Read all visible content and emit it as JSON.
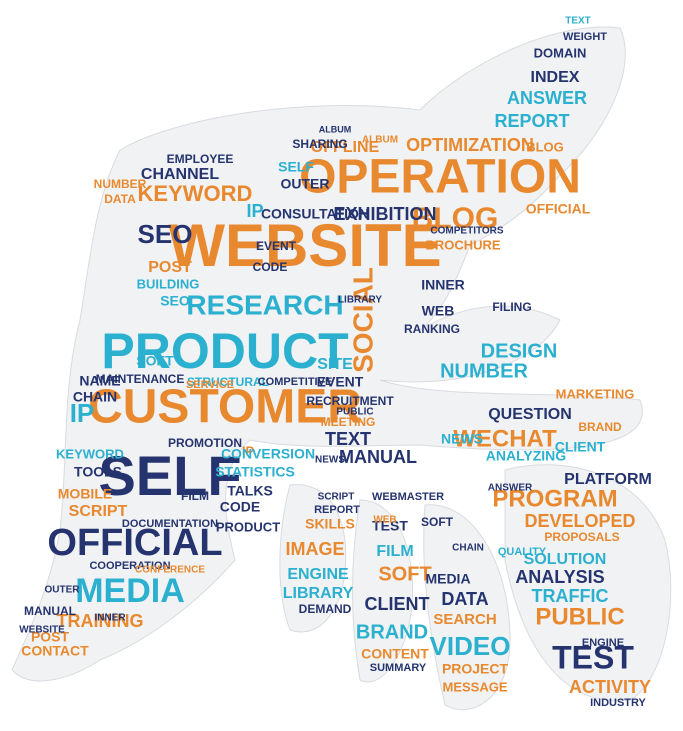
{
  "palette": {
    "orange": "#e8892f",
    "navy": "#25346e",
    "cyan": "#2bb0cf",
    "shape_fill": "#f1f2f4",
    "shape_stroke": "#d9dbe0"
  },
  "words": [
    {
      "text": "WEBSITE",
      "color": "orange"
    },
    {
      "text": "OPERATION",
      "color": "orange"
    },
    {
      "text": "PRODUCT",
      "color": "cyan"
    },
    {
      "text": "CUSTOMER",
      "color": "orange"
    },
    {
      "text": "SELF",
      "color": "navy"
    },
    {
      "text": "OFFICIAL",
      "color": "navy"
    },
    {
      "text": "MEDIA",
      "color": "cyan"
    },
    {
      "text": "RESEARCH",
      "color": "cyan"
    },
    {
      "text": "SOCIAL",
      "color": "orange"
    },
    {
      "text": "BLOG",
      "color": "orange"
    },
    {
      "text": "KEYWORD",
      "color": "orange"
    },
    {
      "text": "CHANNEL",
      "color": "navy"
    },
    {
      "text": "SEO",
      "color": "navy"
    },
    {
      "text": "IP",
      "color": "cyan"
    },
    {
      "text": "IP",
      "color": "cyan"
    },
    {
      "text": "OPTIMIZATION",
      "color": "orange"
    },
    {
      "text": "OFFLINE",
      "color": "orange"
    },
    {
      "text": "REPORT",
      "color": "cyan"
    },
    {
      "text": "ANSWER",
      "color": "cyan"
    },
    {
      "text": "INDEX",
      "color": "navy"
    },
    {
      "text": "DOMAIN",
      "color": "navy"
    },
    {
      "text": "WEIGHT",
      "color": "navy"
    },
    {
      "text": "TEXT",
      "color": "cyan"
    },
    {
      "text": "EXHIBITION",
      "color": "navy"
    },
    {
      "text": "CONSULTATION",
      "color": "navy"
    },
    {
      "text": "ALBUM",
      "color": "navy"
    },
    {
      "text": "OUTER",
      "color": "navy"
    },
    {
      "text": "SELF",
      "color": "cyan"
    },
    {
      "text": "SHARING",
      "color": "navy"
    },
    {
      "text": "EMPLOYEE",
      "color": "navy"
    },
    {
      "text": "NUMBER",
      "color": "orange"
    },
    {
      "text": "DATA",
      "color": "orange"
    },
    {
      "text": "POST",
      "color": "orange"
    },
    {
      "text": "BUILDING",
      "color": "cyan"
    },
    {
      "text": "SEO",
      "color": "cyan"
    },
    {
      "text": "EVENT",
      "color": "navy"
    },
    {
      "text": "CODE",
      "color": "navy"
    },
    {
      "text": "WEB",
      "color": "navy"
    },
    {
      "text": "RANKING",
      "color": "navy"
    },
    {
      "text": "DESIGN",
      "color": "cyan"
    },
    {
      "text": "NUMBER",
      "color": "cyan"
    },
    {
      "text": "FILING",
      "color": "navy"
    },
    {
      "text": "INNER",
      "color": "navy"
    },
    {
      "text": "BROCHURE",
      "color": "orange"
    },
    {
      "text": "SITE",
      "color": "cyan"
    },
    {
      "text": "EVENT",
      "color": "navy"
    },
    {
      "text": "NAME",
      "color": "navy"
    },
    {
      "text": "CHAIN",
      "color": "navy"
    },
    {
      "text": "SOFT",
      "color": "cyan"
    },
    {
      "text": "MAINTENANCE",
      "color": "navy"
    },
    {
      "text": "STRUCTURAL",
      "color": "cyan"
    },
    {
      "text": "COMPETITIVE",
      "color": "navy"
    },
    {
      "text": "RECRUITMENT",
      "color": "navy"
    },
    {
      "text": "KEYWORD",
      "color": "cyan"
    },
    {
      "text": "TOOLS",
      "color": "navy"
    },
    {
      "text": "TEXT",
      "color": "navy"
    },
    {
      "text": "MANUAL",
      "color": "navy"
    },
    {
      "text": "MEETING",
      "color": "orange"
    },
    {
      "text": "PUBLIC",
      "color": "navy"
    },
    {
      "text": "PROMOTION",
      "color": "navy"
    },
    {
      "text": "IP",
      "color": "orange"
    },
    {
      "text": "CONVERSION",
      "color": "cyan"
    },
    {
      "text": "STATISTICS",
      "color": "cyan"
    },
    {
      "text": "TALKS",
      "color": "navy"
    },
    {
      "text": "CODE",
      "color": "navy"
    },
    {
      "text": "FILM",
      "color": "navy"
    },
    {
      "text": "MOBILE",
      "color": "orange"
    },
    {
      "text": "SCRIPT",
      "color": "orange"
    },
    {
      "text": "SERVICE",
      "color": "orange"
    },
    {
      "text": "PRODUCT",
      "color": "navy"
    },
    {
      "text": "DOCUMENTATION",
      "color": "navy"
    },
    {
      "text": "COOPERATION",
      "color": "navy"
    },
    {
      "text": "CONFERENCE",
      "color": "orange"
    },
    {
      "text": "TRAINING",
      "color": "orange"
    },
    {
      "text": "POST",
      "color": "orange"
    },
    {
      "text": "CONTACT",
      "color": "orange"
    },
    {
      "text": "MANUAL",
      "color": "navy"
    },
    {
      "text": "WEBSITE",
      "color": "navy"
    },
    {
      "text": "INNER",
      "color": "navy"
    },
    {
      "text": "OUTER",
      "color": "navy"
    },
    {
      "text": "WECHAT",
      "color": "orange"
    },
    {
      "text": "NEWS",
      "color": "cyan"
    },
    {
      "text": "QUESTION",
      "color": "navy"
    },
    {
      "text": "ANALYZING",
      "color": "cyan"
    },
    {
      "text": "MARKETING",
      "color": "orange"
    },
    {
      "text": "BRAND",
      "color": "orange"
    },
    {
      "text": "PROGRAM",
      "color": "orange"
    },
    {
      "text": "PLATFORM",
      "color": "navy"
    },
    {
      "text": "DEVELOPED",
      "color": "orange"
    },
    {
      "text": "PROPOSALS",
      "color": "orange"
    },
    {
      "text": "SOLUTION",
      "color": "cyan"
    },
    {
      "text": "QUALITY",
      "color": "cyan"
    },
    {
      "text": "ANALYSIS",
      "color": "navy"
    },
    {
      "text": "TRAFFIC",
      "color": "cyan"
    },
    {
      "text": "PUBLIC",
      "color": "orange"
    },
    {
      "text": "TEST",
      "color": "navy"
    },
    {
      "text": "ACTIVITY",
      "color": "orange"
    },
    {
      "text": "INDUSTRY",
      "color": "navy"
    },
    {
      "text": "ENGINE",
      "color": "navy"
    },
    {
      "text": "SKILLS",
      "color": "orange"
    },
    {
      "text": "IMAGE",
      "color": "orange"
    },
    {
      "text": "ENGINE",
      "color": "cyan"
    },
    {
      "text": "LIBRARY",
      "color": "cyan"
    },
    {
      "text": "DEMAND",
      "color": "navy"
    },
    {
      "text": "REPORT",
      "color": "navy"
    },
    {
      "text": "SCRIPT",
      "color": "navy"
    },
    {
      "text": "TEST",
      "color": "navy"
    },
    {
      "text": "FILM",
      "color": "cyan"
    },
    {
      "text": "SOFT",
      "color": "orange"
    },
    {
      "text": "CLIENT",
      "color": "navy"
    },
    {
      "text": "BRAND",
      "color": "cyan"
    },
    {
      "text": "CONTENT",
      "color": "orange"
    },
    {
      "text": "SUMMARY",
      "color": "navy"
    },
    {
      "text": "MEDIA",
      "color": "navy"
    },
    {
      "text": "DATA",
      "color": "navy"
    },
    {
      "text": "SEARCH",
      "color": "orange"
    },
    {
      "text": "VIDEO",
      "color": "cyan"
    },
    {
      "text": "PROJECT",
      "color": "orange"
    },
    {
      "text": "MESSAGE",
      "color": "orange"
    },
    {
      "text": "WEBMASTER",
      "color": "navy"
    },
    {
      "text": "WEB",
      "color": "orange"
    },
    {
      "text": "SOFT",
      "color": "navy"
    },
    {
      "text": "ANSWER",
      "color": "navy"
    },
    {
      "text": "CLIENT",
      "color": "cyan"
    },
    {
      "text": "BLOG",
      "color": "orange"
    },
    {
      "text": "OFFICIAL",
      "color": "orange"
    },
    {
      "text": "COMPETITORS",
      "color": "navy"
    },
    {
      "text": "ALBUM",
      "color": "orange"
    },
    {
      "text": "LIBRARY",
      "color": "navy"
    },
    {
      "text": "CHAIN",
      "color": "navy"
    },
    {
      "text": "NEWS",
      "color": "navy"
    }
  ]
}
